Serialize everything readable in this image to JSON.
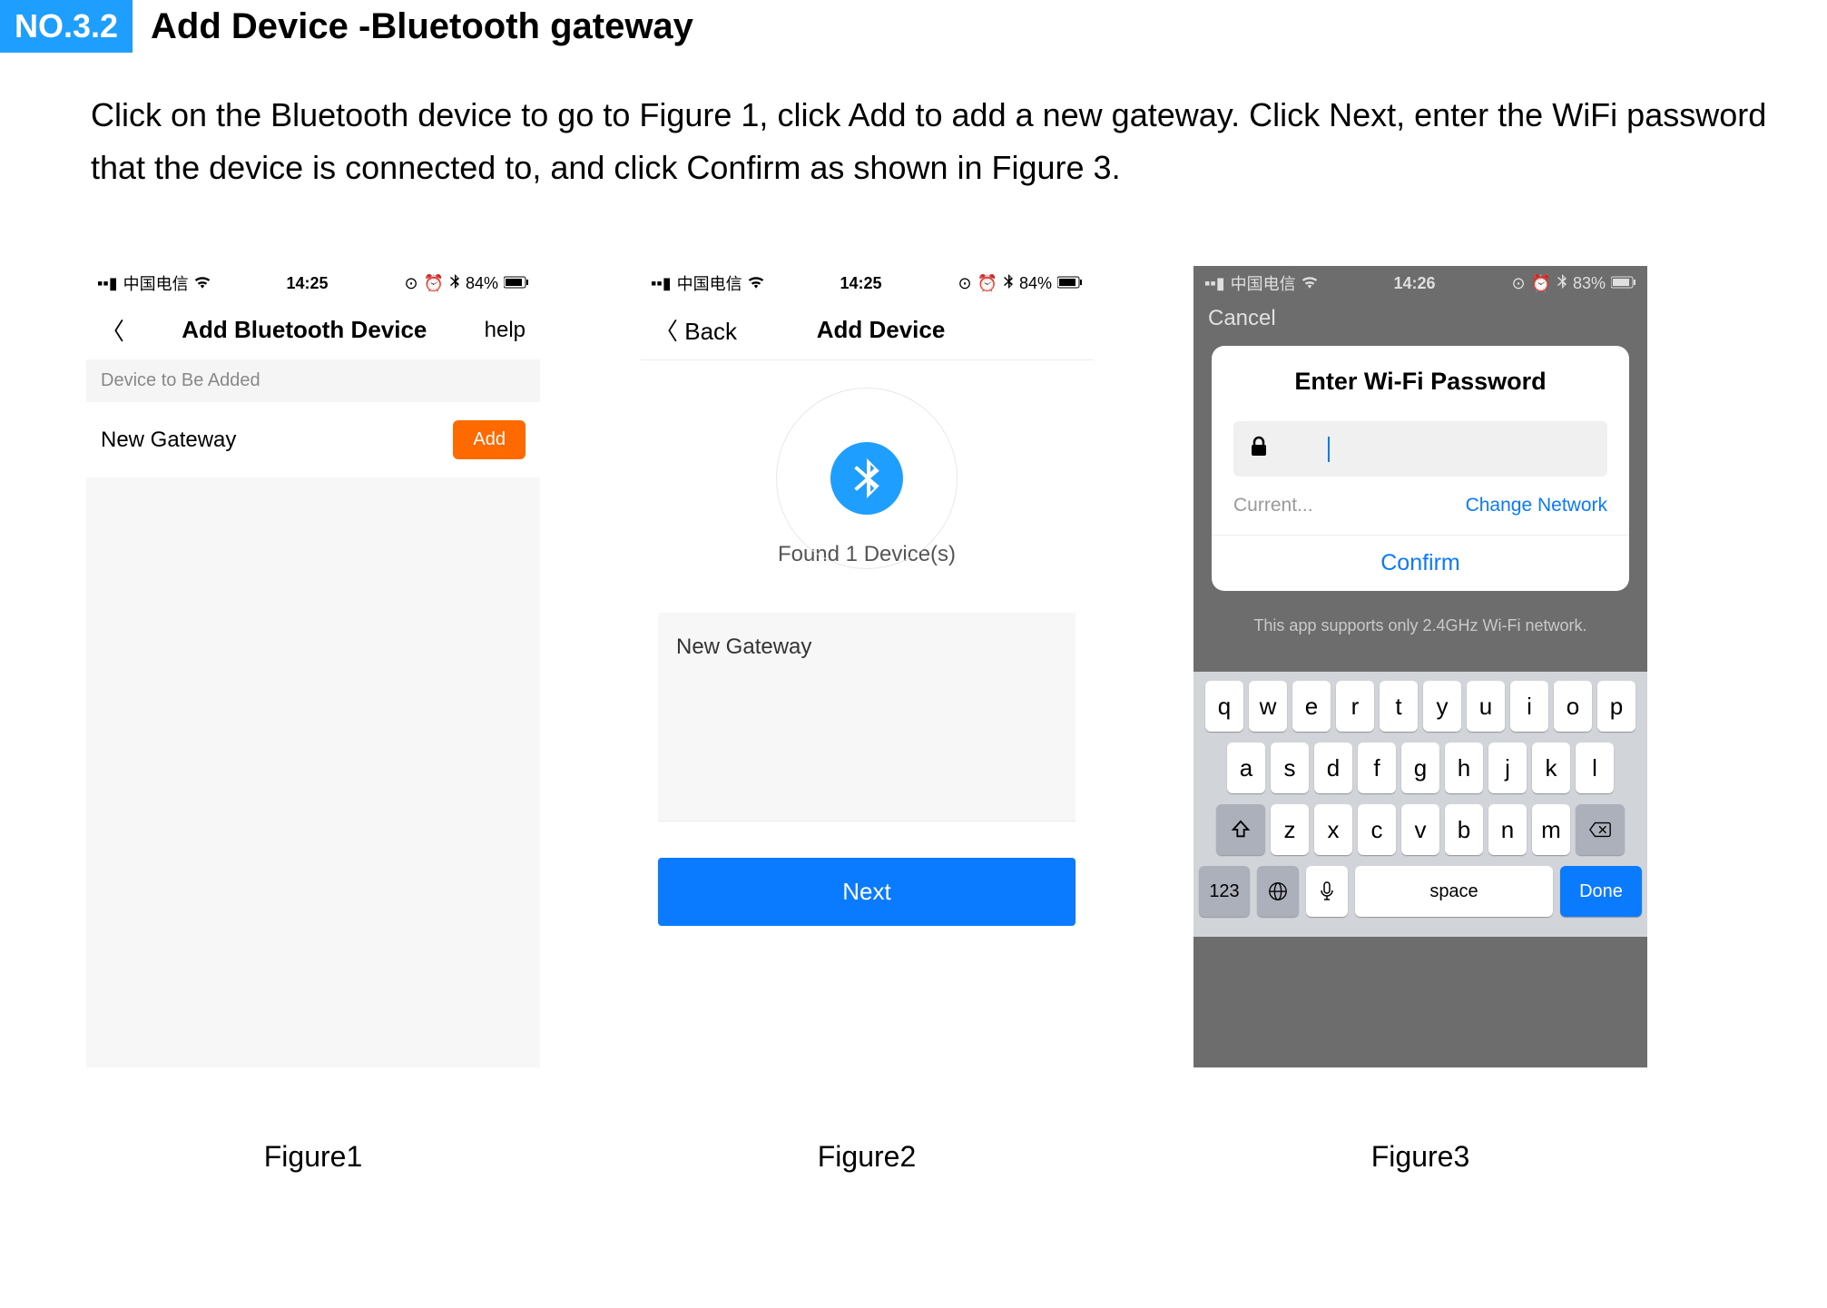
{
  "header": {
    "badge": "NO.3.2",
    "title": "Add Device -Bluetooth gateway"
  },
  "description": "Click on the Bluetooth device to go to Figure 1, click Add to add a new gateway. Click Next, enter the WiFi password that the device is connected to, and click Confirm as shown in Figure 3.",
  "colors": {
    "badge_bg": "#1e9fff",
    "add_btn_bg": "#ff6a00",
    "primary_blue": "#0a7aff",
    "kb_bg": "#d1d4d9",
    "kb_special": "#abb0ba",
    "p3_bg": "#6d6d6d"
  },
  "status": {
    "carrier": "中国电信",
    "time12": "14:25",
    "time3": "14:26",
    "batt12": "84%",
    "batt3": "83%"
  },
  "phone1": {
    "nav_title": "Add Bluetooth Device",
    "help": "help",
    "section": "Device to Be Added",
    "row_label": "New Gateway",
    "add_label": "Add"
  },
  "phone2": {
    "back": "Back",
    "nav_title": "Add Device",
    "found": "Found 1 Device(s)",
    "card_label": "New Gateway",
    "next": "Next"
  },
  "phone3": {
    "cancel": "Cancel",
    "modal_title": "Enter Wi-Fi Password",
    "current": "Current...",
    "change": "Change Network",
    "confirm": "Confirm",
    "note": "This app supports only 2.4GHz Wi-Fi network.",
    "keys_r1": [
      "q",
      "w",
      "e",
      "r",
      "t",
      "y",
      "u",
      "i",
      "o",
      "p"
    ],
    "keys_r2": [
      "a",
      "s",
      "d",
      "f",
      "g",
      "h",
      "j",
      "k",
      "l"
    ],
    "keys_r3": [
      "z",
      "x",
      "c",
      "v",
      "b",
      "n",
      "m"
    ],
    "k123": "123",
    "space": "space",
    "done": "Done"
  },
  "captions": {
    "f1": "Figure1",
    "f2": "Figure2",
    "f3": "Figure3"
  }
}
